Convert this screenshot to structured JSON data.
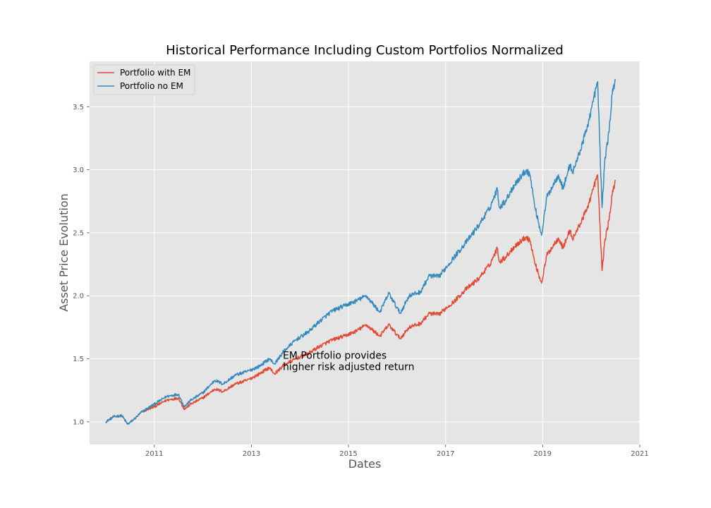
{
  "chart_data": {
    "type": "line",
    "title": "Historical Performance Including Custom Portfolios Normalized",
    "xlabel": "Dates",
    "ylabel": "Asset Price Evolution",
    "xlim": [
      "2009-09-01",
      "2021-01-01"
    ],
    "ylim": [
      0.82,
      3.86
    ],
    "x_ticks": [
      "2011",
      "2013",
      "2015",
      "2017",
      "2019",
      "2021"
    ],
    "y_ticks": [
      "1.0",
      "1.5",
      "2.0",
      "2.5",
      "3.0",
      "3.5"
    ],
    "grid": true,
    "legend_position": "top-left",
    "annotation": {
      "lines": [
        "EM Portfolio provides",
        "higher risk adjusted return"
      ],
      "x": "2013-08-25",
      "y": 1.44
    },
    "series": [
      {
        "name": "Portfolio with EM",
        "color": "#E24A33",
        "x": [
          "2010-01-01",
          "2010-03-01",
          "2010-05-01",
          "2010-06-15",
          "2010-08-01",
          "2010-10-01",
          "2011-01-01",
          "2011-04-01",
          "2011-07-01",
          "2011-08-15",
          "2011-10-01",
          "2012-01-01",
          "2012-04-01",
          "2012-06-01",
          "2012-09-01",
          "2012-12-01",
          "2013-03-01",
          "2013-05-15",
          "2013-06-25",
          "2013-09-01",
          "2013-12-01",
          "2014-03-01",
          "2014-06-01",
          "2014-09-01",
          "2014-12-01",
          "2015-03-01",
          "2015-05-15",
          "2015-08-25",
          "2015-11-01",
          "2016-01-25",
          "2016-04-01",
          "2016-06-25",
          "2016-09-01",
          "2016-11-10",
          "2017-01-01",
          "2017-03-01",
          "2017-06-01",
          "2017-09-01",
          "2017-12-01",
          "2018-01-25",
          "2018-02-10",
          "2018-04-01",
          "2018-06-01",
          "2018-09-01",
          "2018-10-01",
          "2018-11-01",
          "2018-12-24",
          "2019-02-01",
          "2019-04-30",
          "2019-06-03",
          "2019-07-26",
          "2019-08-15",
          "2019-10-01",
          "2019-12-01",
          "2020-02-19",
          "2020-03-23",
          "2020-04-15",
          "2020-05-15",
          "2020-06-08",
          "2020-07-01"
        ],
        "values": [
          1.0,
          1.04,
          1.05,
          0.98,
          1.02,
          1.08,
          1.12,
          1.17,
          1.19,
          1.1,
          1.14,
          1.19,
          1.26,
          1.24,
          1.3,
          1.33,
          1.38,
          1.43,
          1.38,
          1.45,
          1.5,
          1.54,
          1.6,
          1.65,
          1.68,
          1.72,
          1.77,
          1.68,
          1.77,
          1.66,
          1.75,
          1.78,
          1.86,
          1.85,
          1.9,
          1.95,
          2.05,
          2.13,
          2.25,
          2.38,
          2.27,
          2.31,
          2.39,
          2.47,
          2.43,
          2.27,
          2.1,
          2.32,
          2.46,
          2.38,
          2.52,
          2.45,
          2.55,
          2.69,
          2.96,
          2.2,
          2.45,
          2.6,
          2.8,
          2.92
        ]
      },
      {
        "name": "Portfolio no EM",
        "color": "#348ABD",
        "x": [
          "2010-01-01",
          "2010-03-01",
          "2010-05-01",
          "2010-06-15",
          "2010-08-01",
          "2010-10-01",
          "2011-01-01",
          "2011-04-01",
          "2011-07-01",
          "2011-08-15",
          "2011-10-01",
          "2012-01-01",
          "2012-04-01",
          "2012-06-01",
          "2012-09-01",
          "2012-12-01",
          "2013-03-01",
          "2013-05-15",
          "2013-06-25",
          "2013-09-01",
          "2013-12-01",
          "2014-03-01",
          "2014-06-01",
          "2014-09-01",
          "2014-12-01",
          "2015-03-01",
          "2015-05-15",
          "2015-08-25",
          "2015-11-01",
          "2016-01-25",
          "2016-04-01",
          "2016-06-25",
          "2016-09-01",
          "2016-11-10",
          "2017-01-01",
          "2017-03-01",
          "2017-06-01",
          "2017-09-01",
          "2017-12-01",
          "2018-01-25",
          "2018-02-10",
          "2018-04-01",
          "2018-06-01",
          "2018-09-01",
          "2018-10-01",
          "2018-11-01",
          "2018-12-24",
          "2019-02-01",
          "2019-04-30",
          "2019-06-03",
          "2019-07-26",
          "2019-08-15",
          "2019-10-01",
          "2019-12-01",
          "2020-02-19",
          "2020-03-23",
          "2020-04-15",
          "2020-05-15",
          "2020-06-08",
          "2020-07-01"
        ],
        "values": [
          1.0,
          1.04,
          1.05,
          0.98,
          1.02,
          1.08,
          1.14,
          1.2,
          1.22,
          1.12,
          1.17,
          1.23,
          1.33,
          1.3,
          1.37,
          1.4,
          1.44,
          1.5,
          1.46,
          1.56,
          1.65,
          1.71,
          1.8,
          1.88,
          1.92,
          1.96,
          2.0,
          1.87,
          2.02,
          1.86,
          2.0,
          2.03,
          2.16,
          2.15,
          2.22,
          2.3,
          2.42,
          2.55,
          2.7,
          2.85,
          2.7,
          2.76,
          2.88,
          3.0,
          2.95,
          2.72,
          2.48,
          2.78,
          2.96,
          2.85,
          3.04,
          2.98,
          3.12,
          3.33,
          3.7,
          2.7,
          3.1,
          3.3,
          3.6,
          3.72
        ]
      }
    ]
  }
}
